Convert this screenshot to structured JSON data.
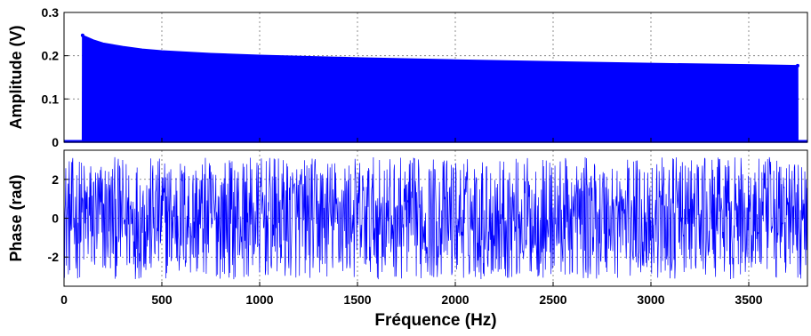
{
  "chart_data": [
    {
      "type": "area",
      "title": "",
      "ylabel": "Amplitude (V)",
      "xlabel": "",
      "xlim": [
        0,
        3800
      ],
      "ylim": [
        0,
        0.3
      ],
      "xticks": [
        0,
        500,
        1000,
        1500,
        2000,
        2500,
        3000,
        3500
      ],
      "yticks": [
        0,
        0.1,
        0.2,
        0.3
      ],
      "ytick_labels": [
        "0",
        "0.1",
        "0.2",
        "0.3"
      ],
      "grid": true,
      "color": "#0000ff",
      "band": [
        95,
        3750
      ],
      "envelope": {
        "x": [
          0,
          94,
          95,
          100,
          150,
          200,
          300,
          400,
          500,
          750,
          1000,
          1500,
          2000,
          2500,
          3000,
          3500,
          3750,
          3751,
          3800
        ],
        "y": [
          0.0,
          0.0,
          0.247,
          0.246,
          0.236,
          0.229,
          0.221,
          0.215,
          0.211,
          0.205,
          0.201,
          0.195,
          0.19,
          0.186,
          0.182,
          0.179,
          0.177,
          0.0,
          0.0
        ]
      }
    },
    {
      "type": "line",
      "title": "",
      "ylabel": "Phase (rad)",
      "xlabel": "Fréquence (Hz)",
      "xlim": [
        0,
        3800
      ],
      "ylim": [
        -3.5,
        3.5
      ],
      "xticks": [
        0,
        500,
        1000,
        1500,
        2000,
        2500,
        3000,
        3500
      ],
      "xtick_labels": [
        "0",
        "500",
        "1000",
        "1500",
        "2000",
        "2500",
        "3000",
        "3500"
      ],
      "yticks": [
        -2,
        0,
        2
      ],
      "ytick_labels": [
        "-2",
        "0",
        "2"
      ],
      "grid": true,
      "color": "#0000ff",
      "noise": {
        "x_start": 0,
        "x_end": 3800,
        "points": 1700,
        "y_min": -3.14,
        "y_max": 3.14,
        "distribution": "uniform"
      }
    }
  ]
}
